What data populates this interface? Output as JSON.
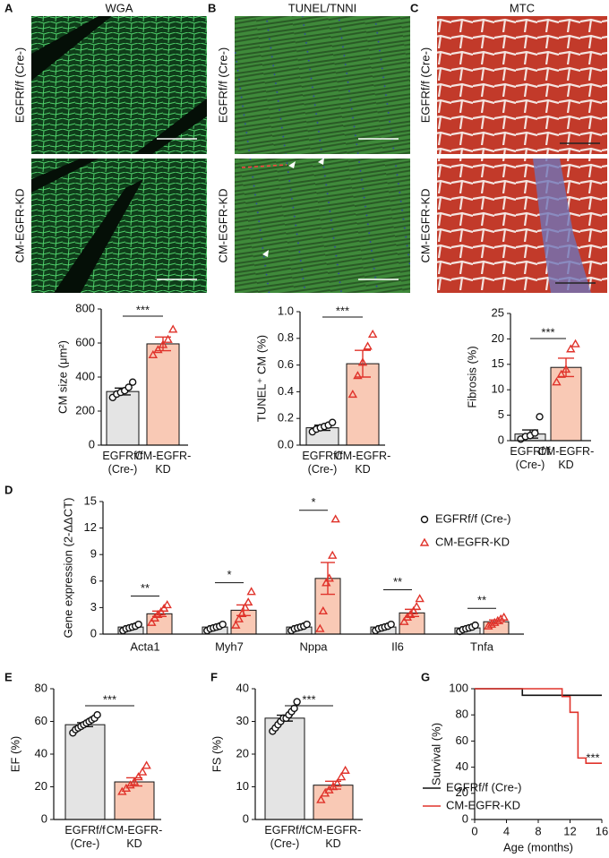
{
  "micrographs": {
    "panels": [
      {
        "letter": "A",
        "title": "WGA"
      },
      {
        "letter": "B",
        "title": "TUNEL/TNNI"
      },
      {
        "letter": "C",
        "title": "MTC"
      }
    ],
    "rows": [
      "EGFRf/f (Cre-)",
      "CM-EGFR-KD"
    ]
  },
  "chart_data": [
    {
      "type": "bar",
      "ylabel": "CM size (μm²)",
      "categories": [
        "EGFRf/f (Cre-)",
        "CM-EGFR-KD"
      ],
      "values": [
        315,
        595
      ],
      "errors": [
        20,
        40
      ],
      "points": [
        [
          280,
          300,
          310,
          320,
          340,
          370
        ],
        [
          530,
          560,
          590,
          620,
          680
        ]
      ],
      "bar_colors": [
        "#e4e4e4",
        "#f9c9b5"
      ],
      "point_colors": [
        "#111111",
        "#e0332b"
      ],
      "markers": [
        "circle",
        "triangle"
      ],
      "ylim": [
        0,
        800
      ],
      "yticks": [
        0,
        200,
        400,
        600,
        800
      ],
      "significance": "***"
    },
    {
      "type": "bar",
      "ylabel": "TUNEL⁺ CM (%)",
      "categories": [
        "EGFRf/f (Cre-)",
        "CM-EGFR-KD"
      ],
      "values": [
        0.13,
        0.61
      ],
      "errors": [
        0.02,
        0.1
      ],
      "points": [
        [
          0.1,
          0.12,
          0.13,
          0.14,
          0.15,
          0.17
        ],
        [
          0.38,
          0.52,
          0.62,
          0.74,
          0.83
        ]
      ],
      "bar_colors": [
        "#e4e4e4",
        "#f9c9b5"
      ],
      "point_colors": [
        "#111111",
        "#e0332b"
      ],
      "markers": [
        "circle",
        "triangle"
      ],
      "ylim": [
        0,
        1.0
      ],
      "yticks": [
        {
          "value": 0,
          "label": "0.0"
        },
        0.2,
        0.4,
        0.6,
        0.8,
        {
          "value": 1.0,
          "label": "1.0"
        }
      ],
      "significance": "***"
    },
    {
      "type": "bar",
      "ylabel": "Fibrosis (%)",
      "categories": [
        "EGFRf/f (Cre-)",
        "CM-EGFR-KD"
      ],
      "values": [
        1.3,
        14.4
      ],
      "errors": [
        0.8,
        1.8
      ],
      "points": [
        [
          0.3,
          0.8,
          1,
          1.5,
          4.7
        ],
        [
          11.5,
          13,
          14,
          18,
          19
        ]
      ],
      "bar_colors": [
        "#e4e4e4",
        "#f9c9b5"
      ],
      "point_colors": [
        "#111111",
        "#e0332b"
      ],
      "markers": [
        "circle",
        "triangle"
      ],
      "ylim": [
        0,
        25
      ],
      "yticks": [
        0,
        5,
        10,
        15,
        20,
        25
      ],
      "significance": "***"
    },
    {
      "type": "grouped_bar",
      "panel": "D",
      "ylabel": "Gene expression (2-ΔΔCT)",
      "categories": [
        "Acta1",
        "Myh7",
        "Nppa",
        "Il6",
        "Tnfa"
      ],
      "series": [
        {
          "name": "EGFRf/f (Cre-)",
          "color": "#111111",
          "fill": "#e4e4e4",
          "marker": "circle",
          "values": [
            0.8,
            0.8,
            0.8,
            0.8,
            0.7
          ],
          "errors": [
            0.1,
            0.1,
            0.1,
            0.1,
            0.1
          ],
          "points": [
            [
              0.4,
              0.6,
              0.7,
              0.8,
              0.9,
              1.1
            ],
            [
              0.4,
              0.6,
              0.7,
              0.8,
              0.9,
              1.1
            ],
            [
              0.4,
              0.6,
              0.7,
              0.8,
              0.9,
              1.1
            ],
            [
              0.4,
              0.6,
              0.7,
              0.8,
              0.9,
              1.1
            ],
            [
              0.3,
              0.5,
              0.6,
              0.7,
              0.8,
              1.0
            ]
          ]
        },
        {
          "name": "CM-EGFR-KD",
          "color": "#e0332b",
          "fill": "#f9c9b5",
          "marker": "triangle",
          "values": [
            2.3,
            2.7,
            6.3,
            2.4,
            1.4
          ],
          "errors": [
            0.3,
            0.6,
            1.8,
            0.4,
            0.2
          ],
          "points": [
            [
              1.3,
              1.8,
              2.2,
              2.5,
              2.9,
              3.3
            ],
            [
              1.0,
              1.7,
              2.3,
              3.0,
              3.6,
              4.8
            ],
            [
              0.6,
              2.6,
              5.8,
              6.3,
              8.9,
              13
            ],
            [
              1.4,
              1.9,
              2.2,
              2.6,
              3.1,
              4
            ],
            [
              0.9,
              1.1,
              1.3,
              1.5,
              1.7,
              1.9
            ]
          ]
        }
      ],
      "significance": [
        "**",
        "*",
        "*",
        "**",
        "**"
      ],
      "ylim": [
        0,
        15
      ],
      "yticks": [
        0,
        3,
        6,
        9,
        12,
        15
      ]
    },
    {
      "type": "bar",
      "panel": "E",
      "ylabel": "EF (%)",
      "categories": [
        "EGFRf/f (Cre-)",
        "CM-EGFR-KD"
      ],
      "values": [
        58,
        23
      ],
      "errors": [
        1.2,
        2.5
      ],
      "points": [
        [
          53,
          55,
          56,
          57,
          58,
          59,
          60,
          61,
          62,
          64
        ],
        [
          17,
          19,
          21,
          23,
          26,
          29,
          33
        ]
      ],
      "bar_colors": [
        "#e4e4e4",
        "#f9c9b5"
      ],
      "point_colors": [
        "#111111",
        "#e0332b"
      ],
      "markers": [
        "circle",
        "triangle"
      ],
      "ylim": [
        0,
        80
      ],
      "yticks": [
        0,
        20,
        40,
        60,
        80
      ],
      "significance": "***"
    },
    {
      "type": "bar",
      "panel": "F",
      "ylabel": "FS (%)",
      "categories": [
        "EGFRf/f (Cre-)",
        "CM-EGFR-KD"
      ],
      "values": [
        31,
        10.5
      ],
      "errors": [
        0.9,
        1.2
      ],
      "points": [
        [
          27,
          28,
          29,
          30,
          31,
          31,
          32,
          33,
          34,
          36
        ],
        [
          6,
          8,
          9,
          10,
          11,
          13,
          15
        ]
      ],
      "bar_colors": [
        "#e4e4e4",
        "#f9c9b5"
      ],
      "point_colors": [
        "#111111",
        "#e0332b"
      ],
      "markers": [
        "circle",
        "triangle"
      ],
      "ylim": [
        0,
        40
      ],
      "yticks": [
        0,
        10,
        20,
        30,
        40
      ],
      "significance": "***"
    },
    {
      "type": "line",
      "panel": "G",
      "ylabel": "Survival (%)",
      "xlabel": "Age (months)",
      "series": [
        {
          "name": "EGFRf/f (Cre-)",
          "color": "#111111",
          "x": [
            0,
            6,
            6,
            16
          ],
          "values": [
            100,
            100,
            95,
            95
          ]
        },
        {
          "name": "CM-EGFR-KD",
          "color": "#e0332b",
          "x": [
            0,
            11,
            11,
            12,
            12,
            13,
            13,
            14,
            14,
            16
          ],
          "values": [
            100,
            100,
            94,
            94,
            82,
            82,
            47,
            47,
            43,
            43
          ]
        }
      ],
      "significance": "***",
      "xlim": [
        0,
        16
      ],
      "xticks": [
        0,
        4,
        8,
        12,
        16
      ],
      "ylim": [
        0,
        100
      ],
      "yticks": [
        0,
        20,
        40,
        60,
        80,
        100
      ]
    }
  ]
}
